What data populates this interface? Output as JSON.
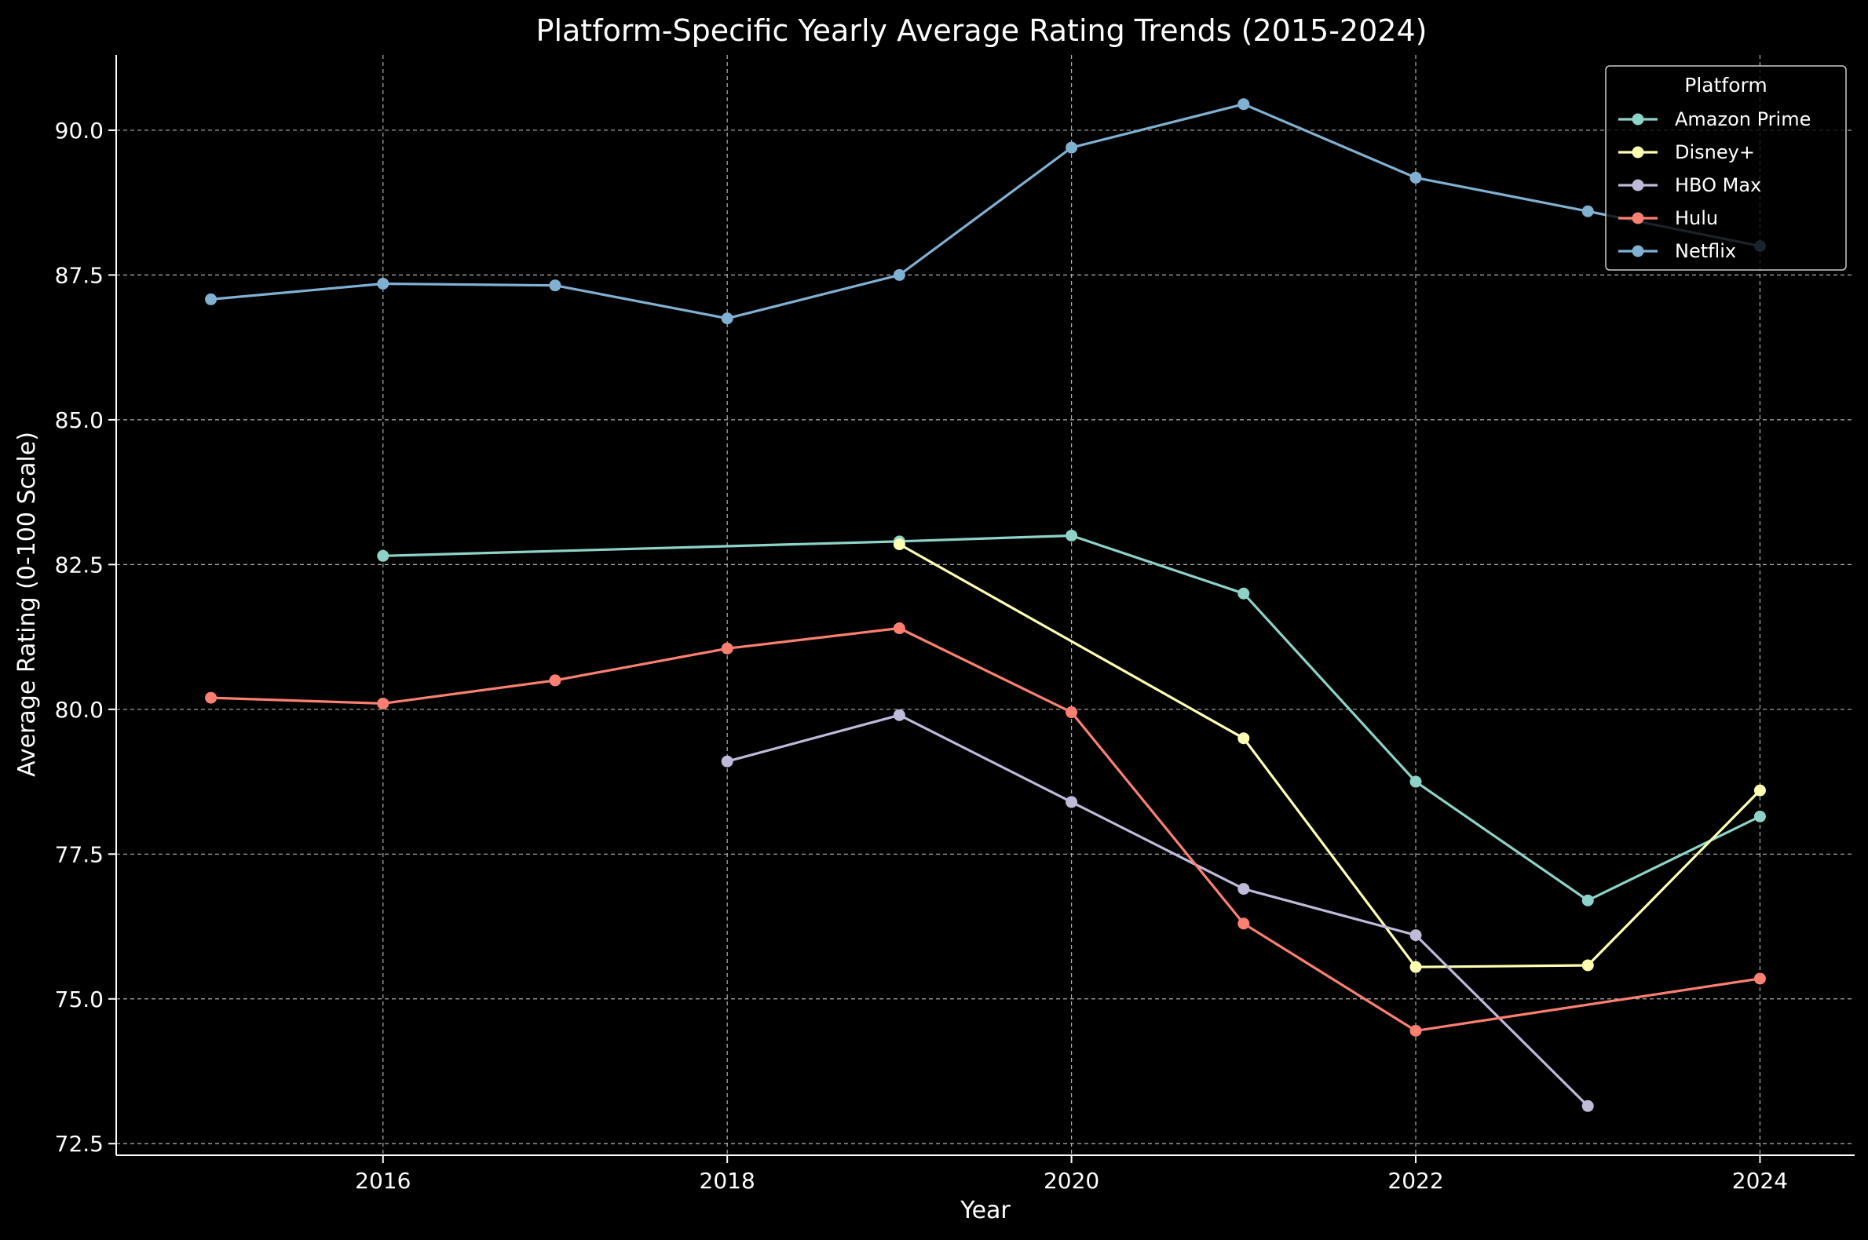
{
  "chart_data": {
    "type": "line",
    "title": "Platform-Specific Yearly Average Rating Trends (2015-2024)",
    "xlabel": "Year",
    "ylabel": "Average Rating (0-100 Scale)",
    "xlim": [
      2014.45,
      2024.55
    ],
    "ylim": [
      72.3,
      91.3
    ],
    "x_ticks": [
      2016,
      2018,
      2020,
      2022,
      2024
    ],
    "y_ticks": [
      72.5,
      75.0,
      77.5,
      80.0,
      82.5,
      85.0,
      87.5,
      90.0
    ],
    "grid": true,
    "legend": {
      "title": "Platform",
      "position": "top-right"
    },
    "background": "#000000",
    "series": [
      {
        "name": "Amazon Prime",
        "color": "#8dd3c7",
        "x": [
          2016,
          2019,
          2020,
          2021,
          2022,
          2023,
          2024
        ],
        "y": [
          82.65,
          82.9,
          83.0,
          82.0,
          78.75,
          76.7,
          78.15
        ]
      },
      {
        "name": "Disney+",
        "color": "#ffffb3",
        "x": [
          2019,
          2021,
          2022,
          2023,
          2024
        ],
        "y": [
          82.85,
          79.5,
          75.55,
          75.58,
          78.6
        ]
      },
      {
        "name": "HBO Max",
        "color": "#bebada",
        "x": [
          2018,
          2019,
          2020,
          2021,
          2022,
          2023
        ],
        "y": [
          79.1,
          79.9,
          78.4,
          76.9,
          76.1,
          73.15
        ]
      },
      {
        "name": "Hulu",
        "color": "#fb8072",
        "x": [
          2015,
          2016,
          2017,
          2018,
          2019,
          2020,
          2021,
          2022,
          2024
        ],
        "y": [
          80.2,
          80.1,
          80.5,
          81.05,
          81.4,
          79.95,
          76.3,
          74.45,
          75.35
        ]
      },
      {
        "name": "Netflix",
        "color": "#80b1d3",
        "x": [
          2015,
          2016,
          2017,
          2018,
          2019,
          2020,
          2021,
          2022,
          2023,
          2024
        ],
        "y": [
          87.08,
          87.35,
          87.32,
          86.75,
          87.5,
          89.7,
          90.45,
          89.18,
          88.6,
          88.0
        ]
      }
    ]
  }
}
